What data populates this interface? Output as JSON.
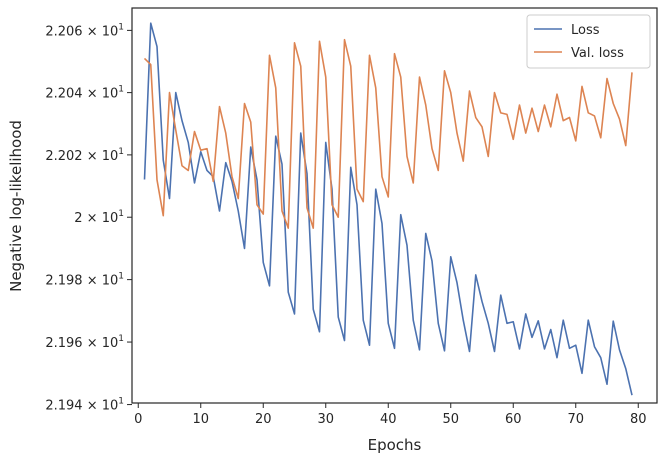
{
  "chart_data": {
    "type": "line",
    "xlabel": "Epochs",
    "ylabel": "Negative log-likelihood",
    "xlim": [
      -1,
      83
    ],
    "ylim": [
      21.9405,
      22.0672
    ],
    "log_y": true,
    "grid": false,
    "legend_placement": "top-right",
    "x_ticks": [
      0,
      10,
      20,
      30,
      40,
      50,
      60,
      70,
      80
    ],
    "y_ticks": [
      {
        "value": 21.94,
        "mantissa": "2.194",
        "base": "10",
        "exp": "1"
      },
      {
        "value": 21.96,
        "mantissa": "2.196",
        "base": "10",
        "exp": "1"
      },
      {
        "value": 21.98,
        "mantissa": "2.198",
        "base": "10",
        "exp": "1"
      },
      {
        "value": 22.0,
        "mantissa": "2",
        "base": "10",
        "exp": "1"
      },
      {
        "value": 22.02,
        "mantissa": "2.202",
        "base": "10",
        "exp": "1"
      },
      {
        "value": 22.04,
        "mantissa": "2.204",
        "base": "10",
        "exp": "1"
      },
      {
        "value": 22.06,
        "mantissa": "2.206",
        "base": "10",
        "exp": "1"
      }
    ],
    "x": [
      1,
      2,
      3,
      4,
      5,
      6,
      7,
      8,
      9,
      10,
      11,
      12,
      13,
      14,
      15,
      16,
      17,
      18,
      19,
      20,
      21,
      22,
      23,
      24,
      25,
      26,
      27,
      28,
      29,
      30,
      31,
      32,
      33,
      34,
      35,
      36,
      37,
      38,
      39,
      40,
      41,
      42,
      43,
      44,
      45,
      46,
      47,
      48,
      49,
      50,
      51,
      52,
      53,
      54,
      55,
      56,
      57,
      58,
      59,
      60,
      61,
      62,
      63,
      64,
      65,
      66,
      67,
      68,
      69,
      70,
      71,
      72,
      73,
      74,
      75,
      76,
      77,
      78,
      79
    ],
    "series": [
      {
        "name": "Loss",
        "color": "#4c72b0",
        "values": [
          22.0121,
          22.0623,
          22.0548,
          22.0183,
          22.006,
          22.04,
          22.031,
          22.024,
          22.011,
          22.021,
          22.015,
          22.013,
          22.002,
          22.0175,
          22.0115,
          22.002,
          21.99,
          22.0225,
          22.012,
          21.9855,
          21.978,
          22.026,
          22.017,
          21.976,
          21.969,
          22.027,
          22.014,
          21.9705,
          21.9633,
          22.024,
          22.009,
          21.968,
          21.9605,
          22.016,
          22.004,
          21.967,
          21.959,
          22.009,
          21.998,
          21.966,
          21.958,
          22.0008,
          21.991,
          21.967,
          21.9575,
          21.9948,
          21.986,
          21.966,
          21.9572,
          21.9873,
          21.979,
          21.967,
          21.957,
          21.9815,
          21.973,
          21.966,
          21.957,
          21.975,
          21.966,
          21.9665,
          21.9578,
          21.969,
          21.9615,
          21.9668,
          21.9578,
          21.964,
          21.955,
          21.967,
          21.958,
          21.959,
          21.95,
          21.967,
          21.9585,
          21.955,
          21.9465,
          21.9667,
          21.9575,
          21.9515,
          21.943
        ]
      },
      {
        "name": "Val. loss",
        "color": "#dd8452",
        "values": [
          22.051,
          22.049,
          22.012,
          22.0005,
          22.04,
          22.028,
          22.0165,
          22.015,
          22.0275,
          22.0215,
          22.022,
          22.0115,
          22.0355,
          22.027,
          22.013,
          22.006,
          22.0365,
          22.0305,
          22.004,
          22.001,
          22.052,
          22.0415,
          22.002,
          21.9965,
          22.056,
          22.0485,
          22.003,
          21.9965,
          22.0565,
          22.045,
          22.004,
          22.0,
          22.057,
          22.0485,
          22.009,
          22.005,
          22.052,
          22.0415,
          22.013,
          22.0065,
          22.0525,
          22.045,
          22.0195,
          22.011,
          22.045,
          22.036,
          22.022,
          22.015,
          22.047,
          22.04,
          22.027,
          22.018,
          22.0405,
          22.032,
          22.029,
          22.0195,
          22.04,
          22.0335,
          22.033,
          22.025,
          22.036,
          22.027,
          22.035,
          22.0275,
          22.036,
          22.029,
          22.0395,
          22.031,
          22.032,
          22.0245,
          22.042,
          22.0335,
          22.0325,
          22.0255,
          22.0445,
          22.0365,
          22.0315,
          22.023,
          22.0465
        ]
      }
    ]
  }
}
